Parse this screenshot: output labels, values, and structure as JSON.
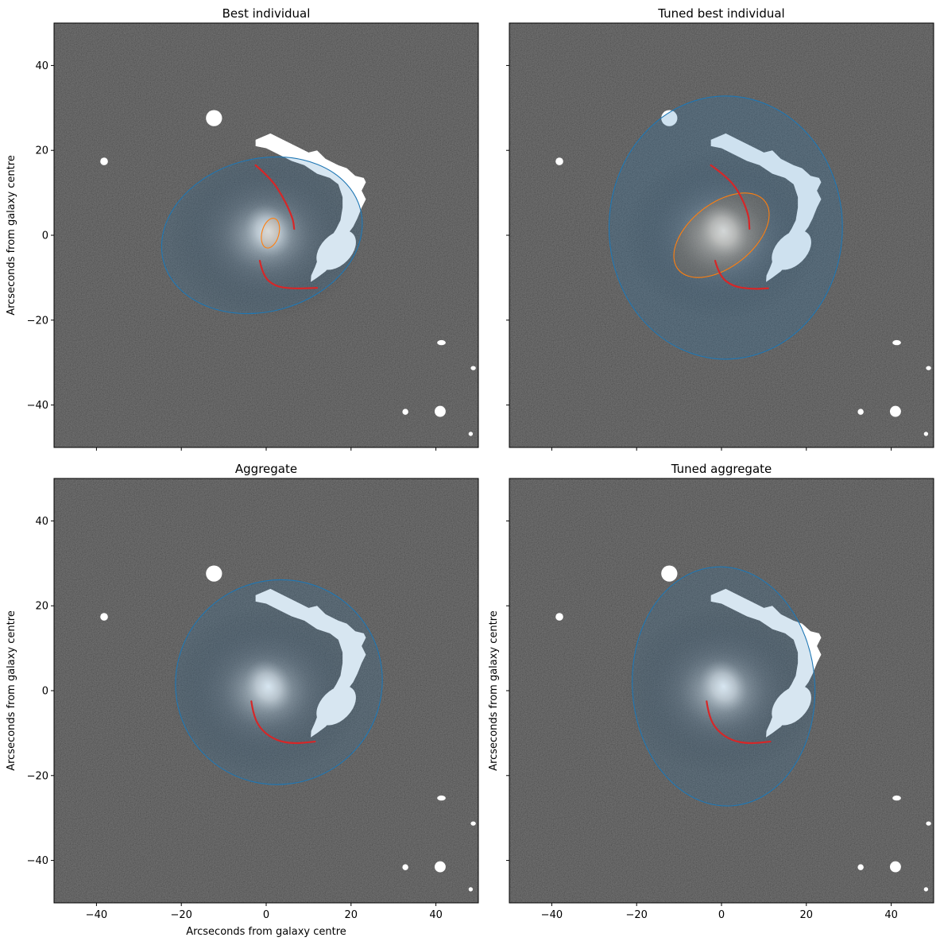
{
  "chart_data": [
    {
      "type": "image-overlay",
      "title": "Best individual",
      "xlabel": "Arcseconds from galaxy centre",
      "ylabel": "Arcseconds from galaxy centre",
      "xlim": [
        -50,
        50
      ],
      "ylim": [
        -50,
        50
      ],
      "xticks": [
        -40,
        -20,
        0,
        20,
        40
      ],
      "yticks": [
        -40,
        -20,
        0,
        20,
        40
      ],
      "show_xticklabels": false,
      "show_yticklabels": true,
      "show_xlabel": false,
      "show_ylabel": true,
      "disk": {
        "center": [
          -1,
          0
        ],
        "rx": 24,
        "ry": 18,
        "angle_deg": 15,
        "color": "#1f77b4",
        "fill_opacity": 0.18
      },
      "bulge": {
        "center": [
          1,
          0.5
        ],
        "rx": 2,
        "ry": 3.6,
        "angle_deg": -15,
        "color": "#ff7f0e"
      },
      "arms": [
        {
          "color": "#d62728",
          "points": [
            [
              -2.5,
              16.5
            ],
            [
              1,
              13.5
            ],
            [
              4,
              9
            ],
            [
              6.3,
              4
            ],
            [
              6.6,
              1.5
            ]
          ]
        },
        {
          "color": "#d62728",
          "points": [
            [
              -1.5,
              -6
            ],
            [
              -0.8,
              -9.5
            ],
            [
              2,
              -12
            ],
            [
              6,
              -12.6
            ],
            [
              12,
              -12.4
            ]
          ]
        }
      ]
    },
    {
      "type": "image-overlay",
      "title": "Tuned best individual",
      "xlabel": "Arcseconds from galaxy centre",
      "ylabel": "Arcseconds from galaxy centre",
      "xlim": [
        -50,
        50
      ],
      "ylim": [
        -50,
        50
      ],
      "xticks": [
        -40,
        -20,
        0,
        20,
        40
      ],
      "yticks": [
        -40,
        -20,
        0,
        20,
        40
      ],
      "show_xticklabels": false,
      "show_yticklabels": false,
      "show_xlabel": false,
      "show_ylabel": false,
      "disk": {
        "center": [
          1,
          1.8
        ],
        "rx": 27.5,
        "ry": 31,
        "angle_deg": 0,
        "color": "#1f77b4",
        "fill_opacity": 0.22
      },
      "bulge": {
        "center": [
          0,
          0
        ],
        "rx": 13,
        "ry": 7.5,
        "angle_deg": 38,
        "color": "#ff7f0e"
      },
      "arms": [
        {
          "color": "#d62728",
          "points": [
            [
              -2.5,
              16.5
            ],
            [
              1,
              14
            ],
            [
              4,
              10.5
            ],
            [
              6.4,
              5
            ],
            [
              6.6,
              1.5
            ]
          ]
        },
        {
          "color": "#d62728",
          "points": [
            [
              -1.5,
              -6
            ],
            [
              -0.5,
              -9.5
            ],
            [
              2.5,
              -12
            ],
            [
              7,
              -12.7
            ],
            [
              11,
              -12.5
            ]
          ]
        }
      ]
    },
    {
      "type": "image-overlay",
      "title": "Aggregate",
      "xlabel": "Arcseconds from galaxy centre",
      "ylabel": "Arcseconds from galaxy centre",
      "xlim": [
        -50,
        50
      ],
      "ylim": [
        -50,
        50
      ],
      "xticks": [
        -40,
        -20,
        0,
        20,
        40
      ],
      "yticks": [
        -40,
        -20,
        0,
        20,
        40
      ],
      "show_xticklabels": true,
      "show_yticklabels": true,
      "show_xlabel": true,
      "show_ylabel": true,
      "disk": {
        "center": [
          3,
          2
        ],
        "rx": 24.5,
        "ry": 24,
        "angle_deg": 30,
        "color": "#1f77b4",
        "fill_opacity": 0.18
      },
      "arms": [
        {
          "color": "#d62728",
          "points": [
            [
              -3.5,
              -2.5
            ],
            [
              -3,
              -6
            ],
            [
              -1,
              -9.5
            ],
            [
              2.5,
              -11.8
            ],
            [
              6.5,
              -12.5
            ],
            [
              11.5,
              -12
            ]
          ]
        }
      ]
    },
    {
      "type": "image-overlay",
      "title": "Tuned aggregate",
      "xlabel": "Arcseconds from galaxy centre",
      "ylabel": "Arcseconds from galaxy centre",
      "xlim": [
        -50,
        50
      ],
      "ylim": [
        -50,
        50
      ],
      "xticks": [
        -40,
        -20,
        0,
        20,
        40
      ],
      "yticks": [
        -40,
        -20,
        0,
        20,
        40
      ],
      "show_xticklabels": true,
      "show_yticklabels": false,
      "show_xlabel": false,
      "show_ylabel": true,
      "disk": {
        "center": [
          0.5,
          1
        ],
        "rx": 21.5,
        "ry": 28.2,
        "angle_deg": 4,
        "color": "#1f77b4",
        "fill_opacity": 0.18
      },
      "arms": [
        {
          "color": "#d62728",
          "points": [
            [
              -3.5,
              -2.5
            ],
            [
              -3,
              -6
            ],
            [
              -1,
              -9.5
            ],
            [
              2.5,
              -11.8
            ],
            [
              6.5,
              -12.5
            ],
            [
              11.5,
              -12
            ]
          ]
        }
      ]
    }
  ]
}
